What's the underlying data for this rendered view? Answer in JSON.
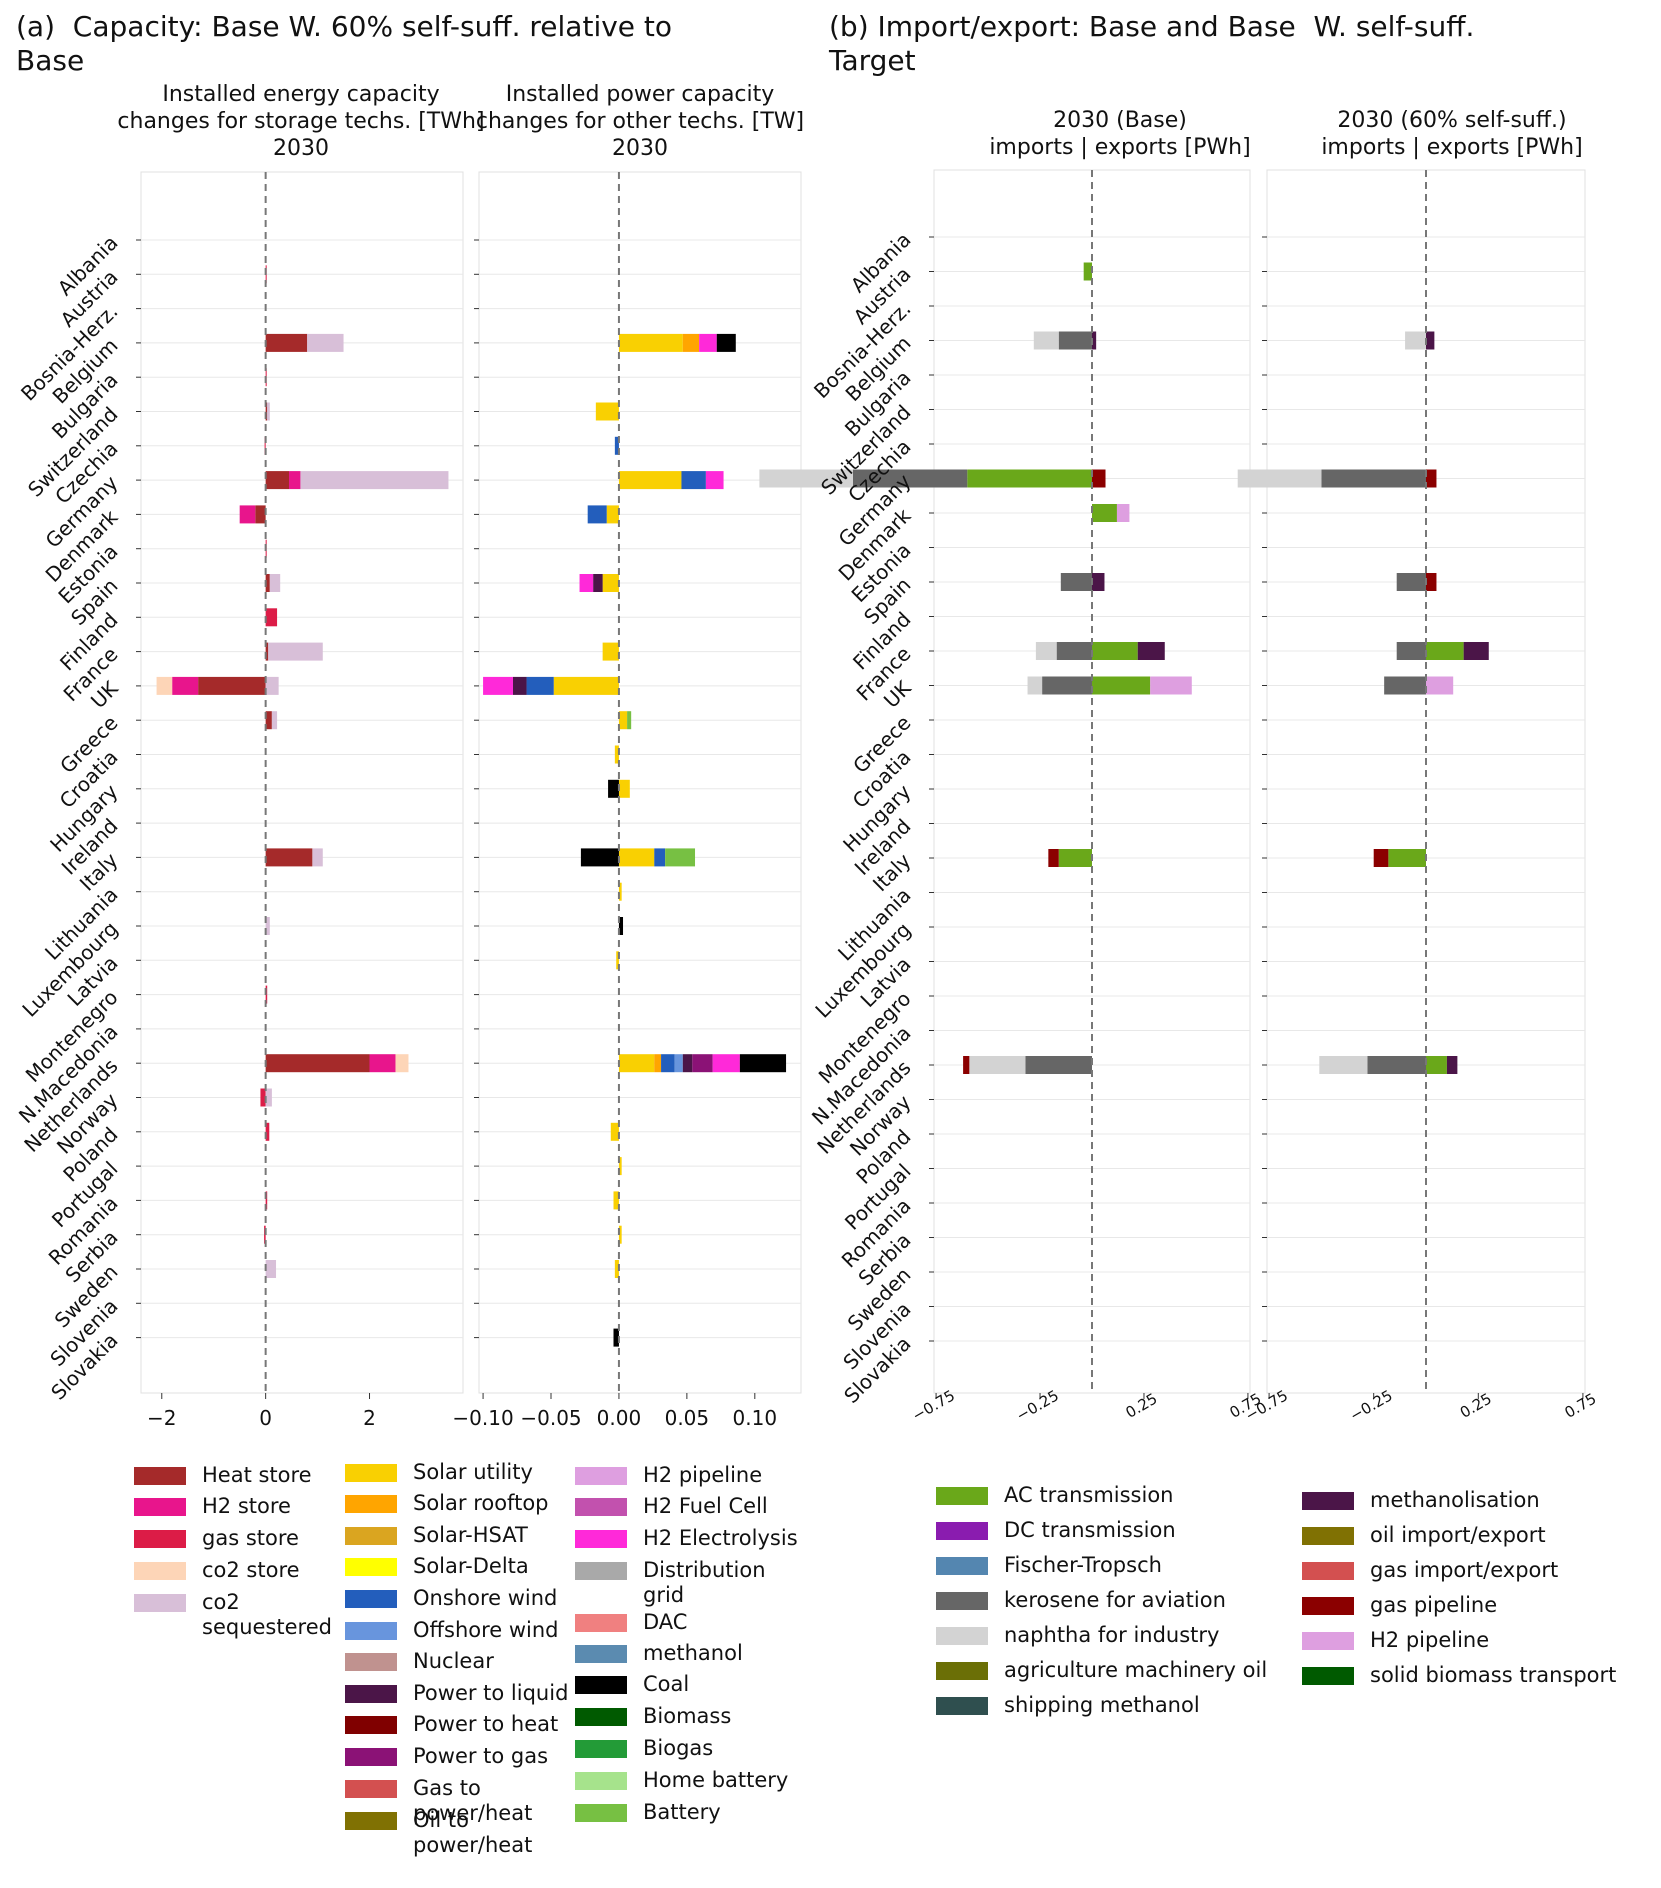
{
  "panel_a_title": "(a)  Capacity: Base W. 60% self-suff. relative to\nBase",
  "panel_b_title": "(b) Import/export: Base and Base  W. self-suff.\nTarget",
  "countries": [
    "Albania",
    "Austria",
    "Bosnia-Herz.",
    "Belgium",
    "Bulgaria",
    "Switzerland",
    "Czechia",
    "Germany",
    "Denmark",
    "Estonia",
    "Spain",
    "Finland",
    "France",
    "UK",
    "Greece",
    "Croatia",
    "Hungary",
    "Ireland",
    "Italy",
    "Lithuania",
    "Luxembourg",
    "Latvia",
    "Montenegro",
    "N.Macedonia",
    "Netherlands",
    "Norway",
    "Poland",
    "Portugal",
    "Romania",
    "Serbia",
    "Sweden",
    "Slovenia",
    "Slovakia"
  ],
  "legend_a": [
    {
      "name": "Heat store",
      "color": "#a52a2a"
    },
    {
      "name": "H2 store",
      "color": "#e8158c"
    },
    {
      "name": "gas store",
      "color": "#dc1c47"
    },
    {
      "name": "co2 store",
      "color": "#fdd5b7"
    },
    {
      "name": "co2 sequestered",
      "color": "#d8bfd8"
    },
    {
      "name": "Solar utility",
      "color": "#f9d002"
    },
    {
      "name": "Solar rooftop",
      "color": "#ffa500"
    },
    {
      "name": "Solar-HSAT",
      "color": "#daa520"
    },
    {
      "name": "Solar-Delta",
      "color": "#ffff00"
    },
    {
      "name": "Onshore wind",
      "color": "#235ebc"
    },
    {
      "name": "Offshore wind",
      "color": "#6895dd"
    },
    {
      "name": "Nuclear",
      "color": "#c0928f"
    },
    {
      "name": "Power to liquid",
      "color": "#4b1548"
    },
    {
      "name": "Power to heat",
      "color": "#800000"
    },
    {
      "name": "Power to gas",
      "color": "#8b1276"
    },
    {
      "name": "Gas to power/heat",
      "color": "#d35050"
    },
    {
      "name": "Oil to power/heat",
      "color": "#807103"
    },
    {
      "name": "H2 pipeline",
      "color": "#de9fe0"
    },
    {
      "name": "H2 Fuel Cell",
      "color": "#c251ae"
    },
    {
      "name": "H2 Electrolysis",
      "color": "#ff29d9"
    },
    {
      "name": "Distribution grid",
      "color": "#a9a9a9"
    },
    {
      "name": "DAC",
      "color": "#f08080"
    },
    {
      "name": "methanol",
      "color": "#5b8bb0"
    },
    {
      "name": "Coal",
      "color": "#000000"
    },
    {
      "name": "Biomass",
      "color": "#005a00"
    },
    {
      "name": "Biogas",
      "color": "#239b37"
    },
    {
      "name": "Home battery",
      "color": "#a6e38c"
    },
    {
      "name": "Battery",
      "color": "#77c043"
    }
  ],
  "legend_b": [
    {
      "name": "AC transmission",
      "color": "#6aa81a"
    },
    {
      "name": "DC transmission",
      "color": "#8a1caf"
    },
    {
      "name": "Fischer-Tropsch",
      "color": "#5486b0"
    },
    {
      "name": "kerosene for aviation",
      "color": "#666666"
    },
    {
      "name": "naphtha for industry",
      "color": "#d3d3d3"
    },
    {
      "name": "agriculture machinery oil",
      "color": "#6b6f06"
    },
    {
      "name": "shipping methanol",
      "color": "#2f4f4f"
    },
    {
      "name": "methanolisation",
      "color": "#4b1548"
    },
    {
      "name": "oil import/export",
      "color": "#807103"
    },
    {
      "name": "gas import/export",
      "color": "#d35050"
    },
    {
      "name": "gas pipeline",
      "color": "#8b0000"
    },
    {
      "name": "H2 pipeline",
      "color": "#de9fe0"
    },
    {
      "name": "solid biomass transport",
      "color": "#005a00"
    }
  ],
  "chart_data": [
    {
      "type": "bar",
      "orientation": "horizontal-stacked",
      "title": "Installed energy capacity\nchanges for storage techs. [TWh]\n2030",
      "xlabel": "",
      "ylabel": "",
      "xlim": [
        -2.4,
        3.8
      ],
      "xticks": [
        -2,
        0,
        2
      ],
      "xtick_labels": [
        "−2",
        "0",
        "2"
      ],
      "categories_ref": "countries",
      "series": [
        {
          "name": "Heat store",
          "color": "#a52a2a",
          "values": {
            "Belgium": 0.8,
            "Switzerland": 0.03,
            "Germany": 0.45,
            "Denmark": -0.2,
            "Spain": 0.08,
            "France": 0.05,
            "UK": -1.3,
            "Greece": 0.12,
            "Italy": 0.9,
            "Netherlands": 2.0
          }
        },
        {
          "name": "H2 store",
          "color": "#e8158c",
          "values": {
            "Germany": 0.22,
            "Denmark": -0.3,
            "UK": -0.5,
            "Netherlands": 0.5
          }
        },
        {
          "name": "gas store",
          "color": "#dc1c47",
          "values": {
            "Austria": 0.02,
            "Bulgaria": 0.02,
            "Czechia": -0.02,
            "Estonia": 0.02,
            "Finland": 0.22,
            "Poland": 0.07,
            "Romania": 0.03,
            "Serbia": -0.03,
            "Montenegro": 0.03,
            "Norway": -0.1
          }
        },
        {
          "name": "co2 store",
          "color": "#fdd5b7",
          "values": {
            "UK": -0.3,
            "Netherlands": 0.25
          }
        },
        {
          "name": "co2 sequestered",
          "color": "#d8bfd8",
          "values": {
            "Belgium": 0.7,
            "Switzerland": 0.05,
            "Germany": 2.85,
            "Spain": 0.2,
            "France": 1.05,
            "UK": 0.25,
            "Greece": 0.1,
            "Italy": 0.2,
            "Luxembourg": 0.08,
            "Norway": 0.12,
            "Sweden": 0.2
          }
        }
      ]
    },
    {
      "type": "bar",
      "orientation": "horizontal-stacked",
      "title": "Installed power capacity\nchanges for other techs. [TW]\n2030",
      "xlabel": "",
      "ylabel": "",
      "xlim": [
        -0.103,
        0.134
      ],
      "xticks": [
        -0.1,
        -0.05,
        0.0,
        0.05,
        0.1
      ],
      "xtick_labels": [
        "−0.10",
        "−0.05",
        "0.00",
        "0.05",
        "0.10"
      ],
      "categories_ref": "countries",
      "series": [
        {
          "name": "Solar utility",
          "color": "#f9d002",
          "values": {
            "Belgium": 0.047,
            "Switzerland": -0.017,
            "Germany": 0.046,
            "Denmark": -0.009,
            "Spain": -0.012,
            "France": -0.012,
            "UK": -0.048,
            "Hungary": 0.008,
            "Italy": 0.026,
            "Lithuania": 0.002,
            "Latvia": -0.002,
            "Netherlands": 0.026,
            "Poland": -0.006,
            "Portugal": 0.002,
            "Romania": -0.004,
            "Serbia": 0.002,
            "Sweden": -0.003,
            "Croatia": -0.003,
            "Greece": 0.006
          }
        },
        {
          "name": "Solar rooftop",
          "color": "#ffa500",
          "values": {
            "Belgium": 0.012,
            "Netherlands": 0.005
          }
        },
        {
          "name": "Onshore wind",
          "color": "#235ebc",
          "values": {
            "Germany": 0.018,
            "Denmark": -0.014,
            "UK": -0.02,
            "Netherlands": 0.01,
            "Italy": 0.008,
            "Czechia": -0.003
          }
        },
        {
          "name": "Offshore wind",
          "color": "#6895dd",
          "values": {
            "Netherlands": 0.006
          }
        },
        {
          "name": "Power to liquid",
          "color": "#4b1548",
          "values": {
            "Spain": -0.007,
            "UK": -0.01,
            "Netherlands": 0.007
          }
        },
        {
          "name": "Power to gas",
          "color": "#8b1276",
          "values": {
            "Netherlands": 0.015
          }
        },
        {
          "name": "H2 Electrolysis",
          "color": "#ff29d9",
          "values": {
            "Belgium": 0.013,
            "Germany": 0.013,
            "UK": -0.022,
            "Netherlands": 0.02,
            "Spain": -0.01
          }
        },
        {
          "name": "Coal",
          "color": "#000000",
          "values": {
            "Belgium": 0.014,
            "Italy": -0.028,
            "Hungary": -0.008,
            "Netherlands": 0.034,
            "Slovakia": -0.004,
            "Luxembourg": 0.003
          }
        },
        {
          "name": "Battery",
          "color": "#77c043",
          "values": {
            "Italy": 0.022,
            "Greece": 0.003
          }
        }
      ]
    },
    {
      "type": "bar",
      "orientation": "horizontal-stacked",
      "title": "2030 (Base)\nimports | exports [PWh]",
      "xlabel": "",
      "ylabel": "",
      "xlim": [
        -0.76,
        0.76
      ],
      "xticks": [
        -0.75,
        -0.25,
        0.25,
        0.75
      ],
      "xtick_labels": [
        "−0.75",
        "−0.25",
        "0.25",
        "0.75"
      ],
      "categories_ref": "countries",
      "series": [
        {
          "name": "AC transmission",
          "color": "#6aa81a",
          "values": {
            "Germany": -0.6,
            "UK": 0.28,
            "France": 0.22,
            "Denmark": 0.12,
            "Austria": -0.04,
            "Italy": -0.16
          }
        },
        {
          "name": "kerosene for aviation",
          "color": "#666666",
          "values": {
            "Germany": -0.55,
            "UK": -0.24,
            "France": -0.17,
            "Spain": -0.15,
            "Netherlands": -0.32,
            "Belgium": -0.16
          }
        },
        {
          "name": "naphtha for industry",
          "color": "#d3d3d3",
          "values": {
            "Germany": -0.45,
            "Belgium": -0.12,
            "Netherlands": -0.27,
            "France": -0.1,
            "UK": -0.07
          }
        },
        {
          "name": "methanolisation",
          "color": "#4b1548",
          "values": {
            "France": 0.13,
            "Spain": 0.06,
            "Belgium": 0.02
          }
        },
        {
          "name": "gas pipeline",
          "color": "#8b0000",
          "values": {
            "Germany": 0.065,
            "Italy": -0.05,
            "Netherlands": -0.03
          }
        },
        {
          "name": "H2 pipeline",
          "color": "#de9fe0",
          "values": {
            "Germany": 0.0,
            "UK": 0.2,
            "Denmark": 0.06
          }
        }
      ]
    },
    {
      "type": "bar",
      "orientation": "horizontal-stacked",
      "title": "2030 (60% self-suff.)\nimports   | exports [PWh]",
      "xlabel": "",
      "ylabel": "",
      "xlim": [
        -0.76,
        0.76
      ],
      "xticks": [
        -0.75,
        -0.25,
        0.25,
        0.75
      ],
      "xtick_labels": [
        "−0.75",
        "−0.25",
        "0.25",
        "0.75"
      ],
      "categories_ref": "countries",
      "series": [
        {
          "name": "AC transmission",
          "color": "#6aa81a",
          "values": {
            "France": 0.18,
            "Netherlands": 0.1,
            "Italy": -0.18
          }
        },
        {
          "name": "kerosene for aviation",
          "color": "#666666",
          "values": {
            "Germany": -0.5,
            "UK": -0.2,
            "France": -0.14,
            "Spain": -0.14,
            "Netherlands": -0.28
          }
        },
        {
          "name": "naphtha for industry",
          "color": "#d3d3d3",
          "values": {
            "Germany": -0.4,
            "Netherlands": -0.23,
            "Belgium": -0.1
          }
        },
        {
          "name": "methanolisation",
          "color": "#4b1548",
          "values": {
            "France": 0.12,
            "Belgium": 0.04,
            "Netherlands": 0.05
          }
        },
        {
          "name": "gas pipeline",
          "color": "#8b0000",
          "values": {
            "Germany": 0.05,
            "Italy": -0.07,
            "Spain": 0.05
          }
        },
        {
          "name": "H2 pipeline",
          "color": "#de9fe0",
          "values": {
            "Germany": 0.0,
            "UK": 0.13
          }
        }
      ]
    }
  ]
}
